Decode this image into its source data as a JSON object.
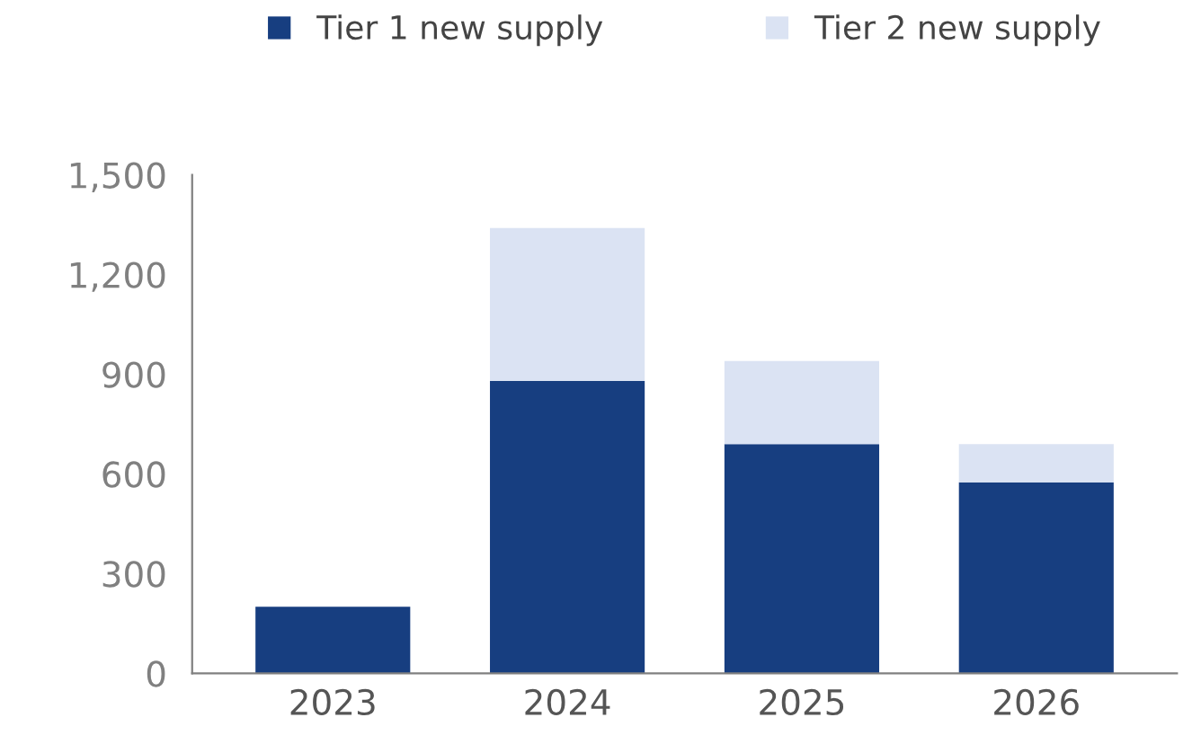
{
  "chart_data": {
    "type": "bar",
    "stacked": true,
    "categories": [
      "2023",
      "2024",
      "2025",
      "2026"
    ],
    "series": [
      {
        "name": "Tier 1 new supply",
        "color": "#173e80",
        "values": [
          200,
          880,
          690,
          575
        ]
      },
      {
        "name": "Tier 2 new supply",
        "color": "#dbe3f3",
        "values": [
          0,
          460,
          250,
          115
        ]
      }
    ],
    "ylim": [
      0,
      1500
    ],
    "yticks": [
      0,
      {
        "value": 300,
        "label": "300"
      },
      {
        "value": 600,
        "label": "600"
      },
      {
        "value": 900,
        "label": "900"
      },
      {
        "value": 1200,
        "label": "1,200"
      },
      {
        "value": 1500,
        "label": "1,500"
      }
    ],
    "grid": false,
    "legend": "top"
  }
}
